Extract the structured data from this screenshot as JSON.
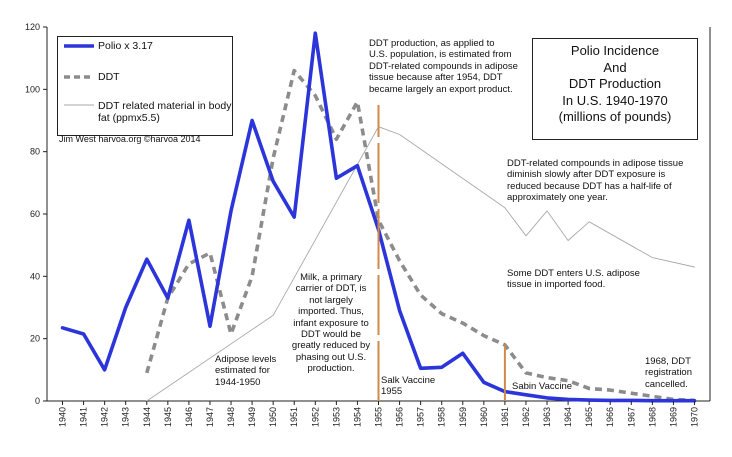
{
  "chart_data": {
    "type": "line",
    "title_lines": [
      "Polio Incidence",
      "And",
      "DDT Production",
      "In U.S. 1940-1970",
      "(millions of pounds)"
    ],
    "x": [
      1940,
      1941,
      1942,
      1943,
      1944,
      1945,
      1946,
      1947,
      1948,
      1949,
      1950,
      1951,
      1952,
      1953,
      1954,
      1955,
      1956,
      1957,
      1958,
      1959,
      1960,
      1961,
      1962,
      1963,
      1964,
      1965,
      1966,
      1967,
      1968,
      1969,
      1970
    ],
    "ylim": [
      0,
      120
    ],
    "yticks": [
      0,
      20,
      40,
      60,
      80,
      100,
      120
    ],
    "series": [
      {
        "name": "Polio x 3.17",
        "color": "#2b35d9",
        "style": "solid-thick",
        "points": [
          [
            1940,
            23.5
          ],
          [
            1941,
            21.5
          ],
          [
            1942,
            10
          ],
          [
            1943,
            30
          ],
          [
            1944,
            45.5
          ],
          [
            1945,
            33
          ],
          [
            1946,
            58
          ],
          [
            1947,
            24
          ],
          [
            1948,
            61
          ],
          [
            1949,
            90
          ],
          [
            1950,
            70.5
          ],
          [
            1951,
            59
          ],
          [
            1952,
            118
          ],
          [
            1953,
            71.5
          ],
          [
            1954,
            75.5
          ],
          [
            1955,
            55
          ],
          [
            1956,
            29
          ],
          [
            1957,
            10.5
          ],
          [
            1958,
            10.8
          ],
          [
            1959,
            15.3
          ],
          [
            1960,
            6
          ],
          [
            1961,
            3
          ],
          [
            1962,
            2
          ],
          [
            1963,
            1
          ],
          [
            1964,
            0.5
          ],
          [
            1965,
            0.3
          ],
          [
            1966,
            0.2
          ],
          [
            1967,
            0.2
          ],
          [
            1968,
            0.1
          ],
          [
            1969,
            0.1
          ],
          [
            1970,
            0.1
          ]
        ]
      },
      {
        "name": "DDT",
        "color": "#8c8c8c",
        "style": "dashed-thick",
        "points": [
          [
            1944,
            9
          ],
          [
            1945,
            33
          ],
          [
            1946,
            44
          ],
          [
            1947,
            47.5
          ],
          [
            1948,
            21.5
          ],
          [
            1949,
            40
          ],
          [
            1950,
            78
          ],
          [
            1951,
            106
          ],
          [
            1952,
            98
          ],
          [
            1953,
            84
          ],
          [
            1954,
            96
          ],
          [
            1955,
            58
          ],
          [
            1956,
            45
          ],
          [
            1957,
            34
          ],
          [
            1958,
            28
          ],
          [
            1959,
            25
          ],
          [
            1960,
            21
          ],
          [
            1961,
            18
          ],
          [
            1962,
            9
          ],
          [
            1963,
            7.5
          ],
          [
            1964,
            6.5
          ],
          [
            1965,
            4
          ],
          [
            1966,
            3.5
          ],
          [
            1967,
            2.5
          ],
          [
            1968,
            1.5
          ],
          [
            1969,
            0.5
          ],
          [
            1970,
            0.2
          ]
        ]
      },
      {
        "name": "DDT related material in body fat (ppmx5.5)",
        "color": "#a9a9a9",
        "style": "thin",
        "points": [
          [
            1944,
            0
          ],
          [
            1950,
            27.5
          ],
          [
            1955,
            88
          ],
          [
            1956,
            85.5
          ],
          [
            1961,
            62
          ],
          [
            1962,
            53
          ],
          [
            1963,
            61
          ],
          [
            1964,
            51.5
          ],
          [
            1965,
            57.5
          ],
          [
            1968,
            46
          ],
          [
            1970,
            43
          ]
        ]
      }
    ],
    "legend": {
      "placement": "top-left",
      "entries": [
        "Polio x 3.17",
        "DDT",
        "DDT related material in body fat (ppmx5.5)"
      ],
      "line1": "Polio x 3.17",
      "line2": "DDT",
      "line3a": "DDT related material in body",
      "line3b": "fat (ppmx5.5)"
    },
    "credit": "Jim West     harvoa.org     ©harvoa 2014",
    "markers": [
      {
        "year": 1955,
        "y_from": 0,
        "y_to": 95,
        "color": "#d08a4a"
      },
      {
        "year": 1961,
        "y_from": 0,
        "y_to": 18,
        "color": "#d08a4a"
      }
    ],
    "annotations": {
      "ddt_export": [
        "DDT production, as applied to",
        "U.S. population, is estimated from",
        "DDT-related compounds in adipose",
        "tissue because after 1954, DDT",
        "became largely an export product."
      ],
      "half_life": [
        "DDT-related compounds in adipose tissue",
        "diminish slowly after DDT exposure is",
        "reduced because DDT has a half-life of",
        "approximately one year."
      ],
      "imported_food": [
        "Some DDT enters U.S. adipose",
        "tissue in imported food."
      ],
      "milk": [
        "Milk, a primary",
        "carrier of DDT, is",
        "not largely",
        "imported. Thus,",
        "infant exposure to",
        "DDT would be",
        "greatly reduced by",
        "phasing out U.S.",
        "production."
      ],
      "adipose_levels": [
        "Adipose levels",
        "estimated for",
        "1944-1950"
      ],
      "salk": [
        "Salk Vaccine",
        "1955"
      ],
      "sabin": [
        "Sabin Vaccine"
      ],
      "ddt_cancelled": [
        "1968, DDT",
        "registration",
        "cancelled."
      ]
    }
  }
}
